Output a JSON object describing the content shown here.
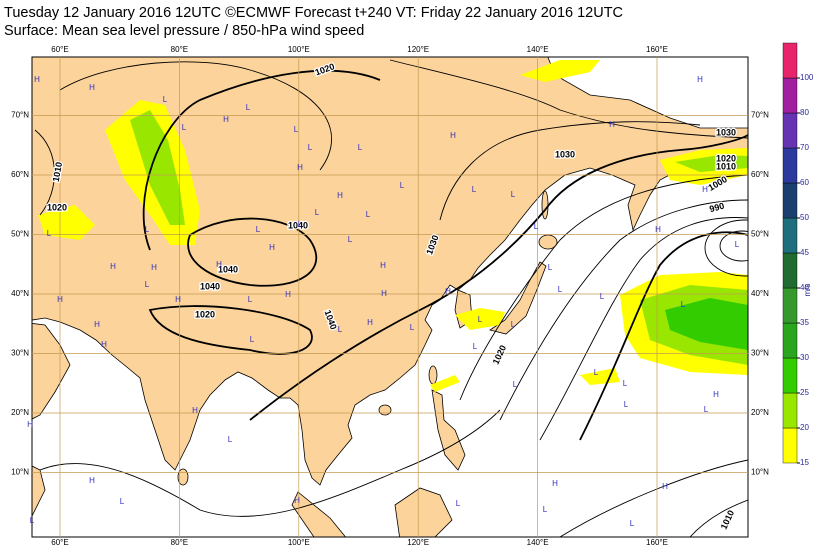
{
  "header": {
    "title": "Tuesday 12 January 2016 12UTC ©ECMWF Forecast t+240 VT: Friday 22 January 2016 12UTC",
    "subtitle": "Surface: Mean sea level pressure / 850-hPa wind speed"
  },
  "map": {
    "longitudes": [
      {
        "value": 60,
        "label": "60°E"
      },
      {
        "value": 80,
        "label": "80°E"
      },
      {
        "value": 100,
        "label": "100°E"
      },
      {
        "value": 120,
        "label": "120°E"
      },
      {
        "value": 140,
        "label": "140°E"
      },
      {
        "value": 160,
        "label": "160°E"
      }
    ],
    "latitudes": [
      {
        "value": 70,
        "label": "70°N"
      },
      {
        "value": 60,
        "label": "60°N"
      },
      {
        "value": 50,
        "label": "50°N"
      },
      {
        "value": 40,
        "label": "40°N"
      },
      {
        "value": 30,
        "label": "30°N"
      },
      {
        "value": 20,
        "label": "20°N"
      },
      {
        "value": 10,
        "label": "10°N"
      }
    ],
    "isobar_labels": [
      1020,
      1010,
      1020,
      1040,
      1040,
      1040,
      1020,
      1040,
      1030,
      1020,
      1030,
      1030,
      1020,
      1010,
      1000,
      990,
      1010
    ],
    "pressure_centers": [
      "H",
      "H",
      "L",
      "L",
      "L",
      "H",
      "L",
      "H",
      "L",
      "L",
      "H",
      "L",
      "L",
      "H",
      "L",
      "L",
      "L",
      "L",
      "H",
      "H",
      "H",
      "H",
      "L",
      "H",
      "L",
      "L",
      "L",
      "H",
      "H",
      "L",
      "H",
      "L",
      "L",
      "H",
      "H",
      "H",
      "L",
      "H",
      "L",
      "L",
      "L",
      "L",
      "L",
      "L",
      "L",
      "L",
      "H",
      "H",
      "L",
      "H",
      "H",
      "L",
      "L",
      "L",
      "L",
      "H",
      "L",
      "H",
      "H",
      "L",
      "L",
      "H",
      "L",
      "L",
      "H",
      "L",
      "H",
      "H",
      "L",
      "H",
      "L"
    ]
  },
  "colorbar": {
    "ticks": [
      15,
      20,
      25,
      30,
      35,
      40,
      45,
      50,
      60,
      70,
      80,
      100
    ],
    "colors": [
      "#ffff00",
      "#99e600",
      "#33cc00",
      "#2aa61e",
      "#36992e",
      "#1f6b30",
      "#1e6e7e",
      "#1a3f6e",
      "#2c3a9e",
      "#6633b3",
      "#a020a0",
      "#e8246a"
    ],
    "unit": "m/s"
  }
}
